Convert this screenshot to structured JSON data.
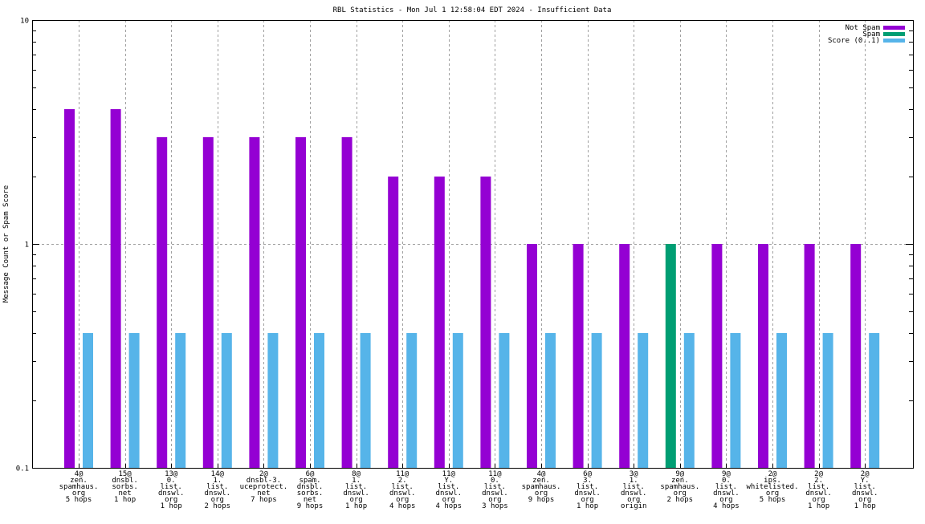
{
  "chart_data": {
    "type": "bar",
    "title": "RBL Statistics - Mon Jul  1 12:58:04 EDT 2024 - Insufficient Data",
    "xlabel": "",
    "ylabel": "Message Count or Spam Score",
    "yscale": "log",
    "ylim": [
      0.1,
      10
    ],
    "yticks": [
      "0.1",
      "1",
      "10"
    ],
    "grid": true,
    "legend_position": "top-right",
    "categories": [
      [
        "4@",
        "zen.",
        "spamhaus.",
        "org",
        "5 hops"
      ],
      [
        "15@",
        "dnsbl.",
        "sorbs.",
        "net",
        "1 hop"
      ],
      [
        "13@",
        "0.",
        "list.",
        "dnswl.",
        "org",
        "1 hop"
      ],
      [
        "14@",
        "1.",
        "list.",
        "dnswl.",
        "org",
        "2 hops"
      ],
      [
        "2@",
        "dnsbl-3.",
        "uceprotect.",
        "net",
        "7 hops"
      ],
      [
        "6@",
        "spam.",
        "dnsbl.",
        "sorbs.",
        "net",
        "9 hops"
      ],
      [
        "8@",
        "1.",
        "list.",
        "dnswl.",
        "org",
        "1 hop"
      ],
      [
        "11@",
        "2.",
        "list.",
        "dnswl.",
        "org",
        "4 hops"
      ],
      [
        "11@",
        "Y.",
        "list.",
        "dnswl.",
        "org",
        "4 hops"
      ],
      [
        "11@",
        "0.",
        "list.",
        "dnswl.",
        "org",
        "3 hops"
      ],
      [
        "4@",
        "zen.",
        "spamhaus.",
        "org",
        "9 hops"
      ],
      [
        "6@",
        "3.",
        "list.",
        "dnswl.",
        "org",
        "1 hop"
      ],
      [
        "3@",
        "1.",
        "list.",
        "dnswl.",
        "org",
        "origin"
      ],
      [
        "9@",
        "zen.",
        "spamhaus.",
        "org",
        "2 hops"
      ],
      [
        "9@",
        "0.",
        "list.",
        "dnswl.",
        "org",
        "4 hops"
      ],
      [
        "2@",
        "ips.",
        "whitelisted.",
        "org",
        "5 hops"
      ],
      [
        "2@",
        "2.",
        "list.",
        "dnswl.",
        "org",
        "1 hop"
      ],
      [
        "2@",
        "Y.",
        "list.",
        "dnswl.",
        "org",
        "1 hop"
      ]
    ],
    "series": [
      {
        "name": "Not Spam",
        "color": "#9400d3",
        "values": [
          4,
          4,
          3,
          3,
          3,
          3,
          3,
          2,
          2,
          2,
          1,
          1,
          1,
          0,
          1,
          1,
          1,
          1
        ]
      },
      {
        "name": "Spam",
        "color": "#009e73",
        "values": [
          0,
          0,
          0,
          0,
          0,
          0,
          0,
          0,
          0,
          0,
          0,
          0,
          0,
          1,
          0,
          0,
          0,
          0
        ]
      },
      {
        "name": "Score (0..1)",
        "color": "#56b4e9",
        "values": [
          0.4,
          0.4,
          0.4,
          0.4,
          0.4,
          0.4,
          0.4,
          0.4,
          0.4,
          0.4,
          0.4,
          0.4,
          0.4,
          0.4,
          0.4,
          0.4,
          0.4,
          0.4
        ]
      }
    ]
  }
}
